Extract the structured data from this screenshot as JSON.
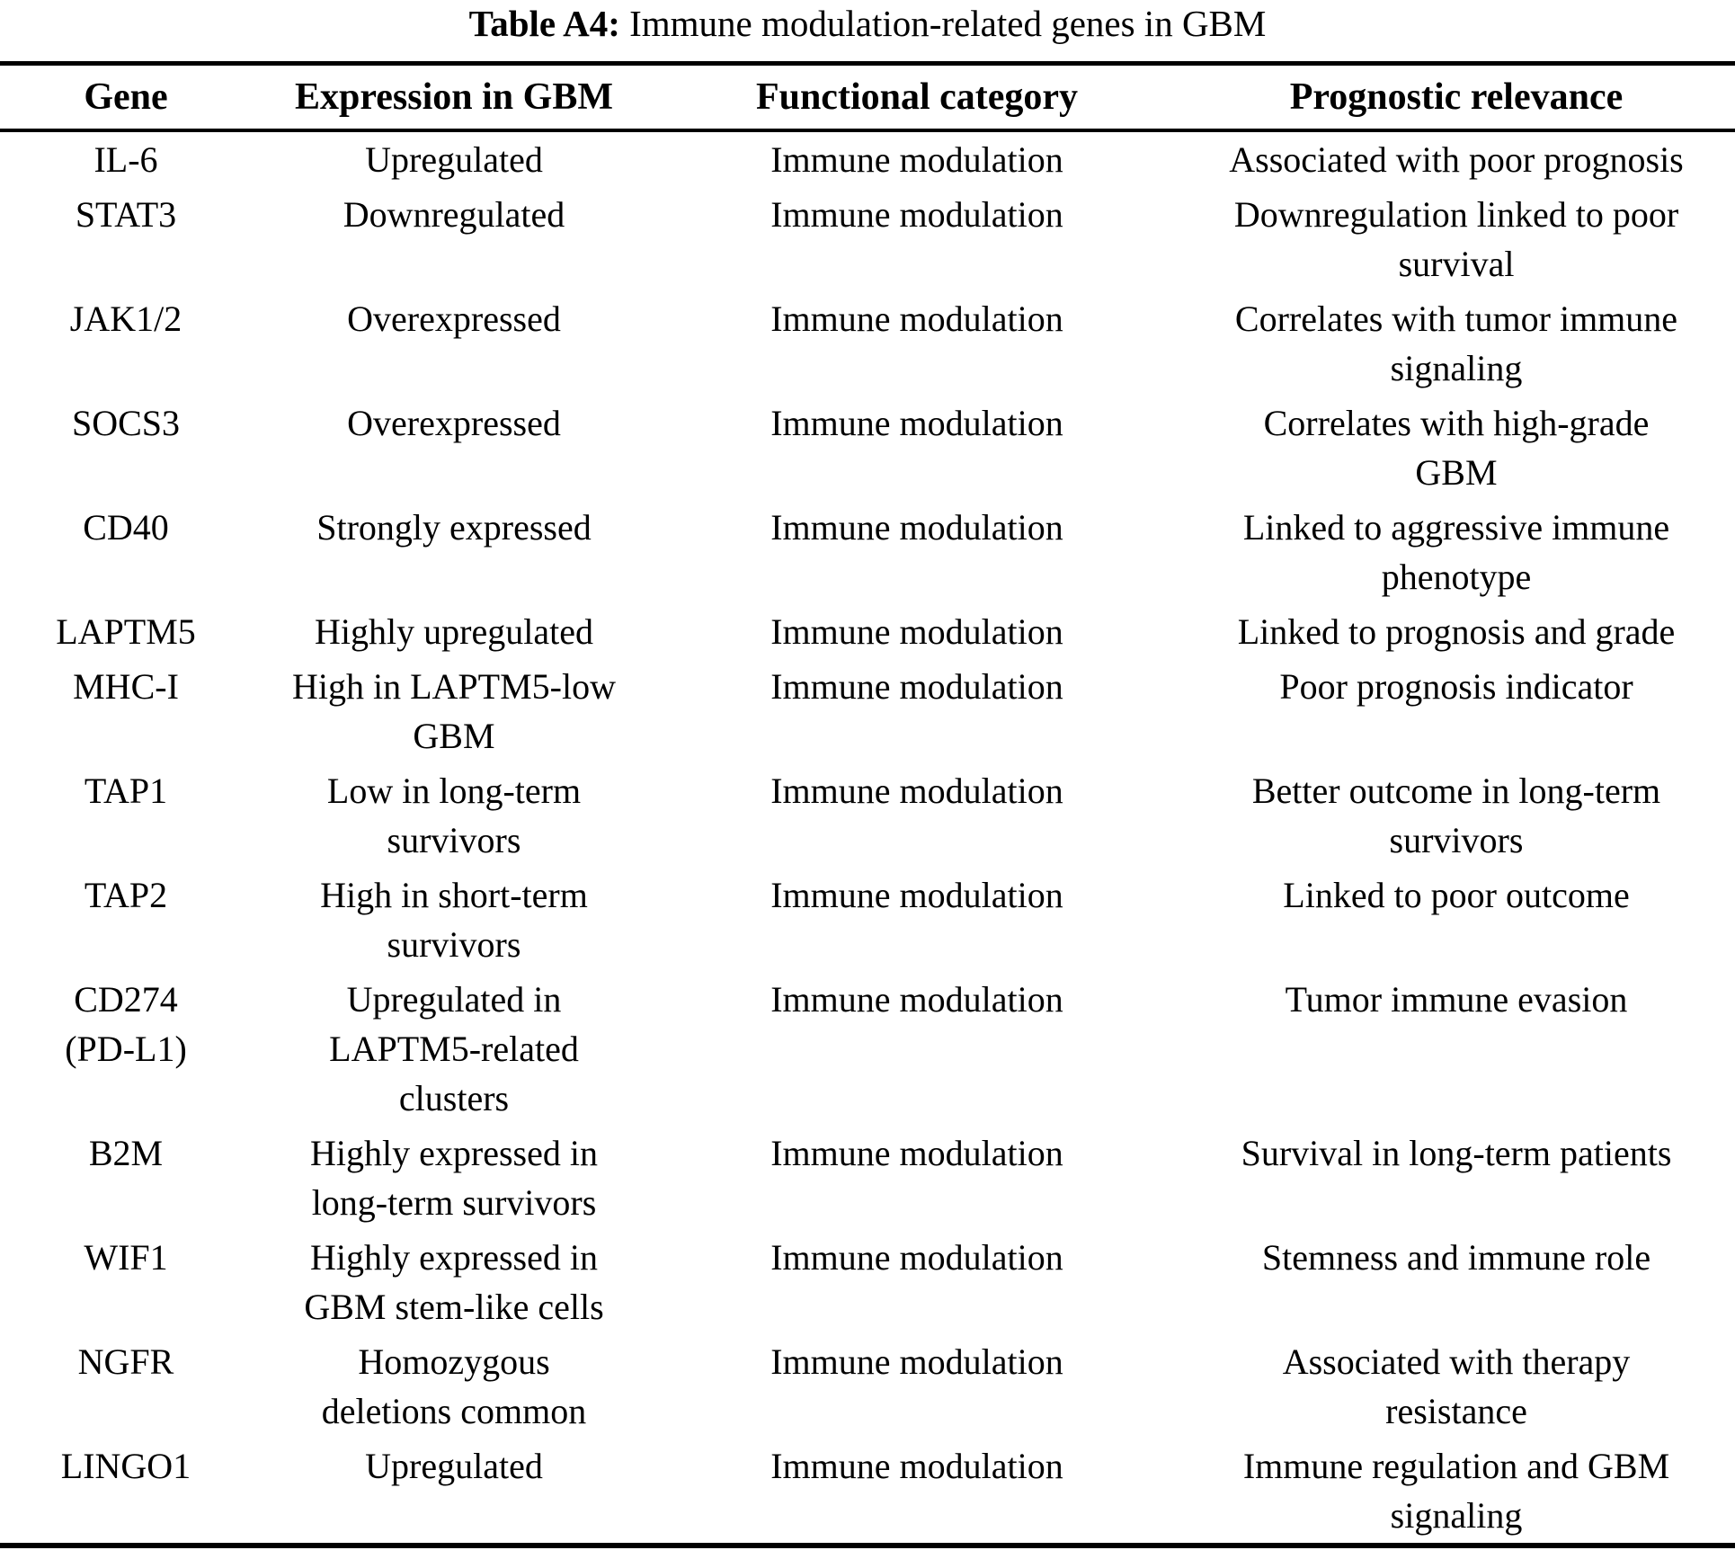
{
  "caption": {
    "prefix": "Table A4:",
    "text": " Immune modulation-related genes in GBM"
  },
  "colors": {
    "text": "#000000",
    "background": "#ffffff",
    "rule": "#000000"
  },
  "table": {
    "columns": [
      "Gene",
      "Expression in GBM",
      "Functional category",
      "Prognostic relevance"
    ],
    "rows": [
      {
        "gene": "IL-6",
        "expression": "Upregulated",
        "category": "Immune modulation",
        "prognosis": "Associated with poor prognosis"
      },
      {
        "gene": "STAT3",
        "expression": "Downregulated",
        "category": "Immune modulation",
        "prognosis": "Downregulation linked to poor\nsurvival"
      },
      {
        "gene": "JAK1/2",
        "expression": "Overexpressed",
        "category": "Immune modulation",
        "prognosis": "Correlates with tumor immune\nsignaling"
      },
      {
        "gene": "SOCS3",
        "expression": "Overexpressed",
        "category": "Immune modulation",
        "prognosis": "Correlates with high-grade\nGBM"
      },
      {
        "gene": "CD40",
        "expression": "Strongly expressed",
        "category": "Immune modulation",
        "prognosis": "Linked to aggressive immune\nphenotype"
      },
      {
        "gene": "LAPTM5",
        "expression": "Highly upregulated",
        "category": "Immune modulation",
        "prognosis": "Linked to prognosis and grade"
      },
      {
        "gene": "MHC-I",
        "expression": "High in LAPTM5-low\nGBM",
        "category": "Immune modulation",
        "prognosis": "Poor prognosis indicator"
      },
      {
        "gene": "TAP1",
        "expression": "Low in long-term\nsurvivors",
        "category": "Immune modulation",
        "prognosis": "Better outcome in long-term\nsurvivors"
      },
      {
        "gene": "TAP2",
        "expression": "High in short-term\nsurvivors",
        "category": "Immune modulation",
        "prognosis": "Linked to poor outcome"
      },
      {
        "gene": "CD274\n(PD-L1)",
        "expression": "Upregulated in\nLAPTM5-related\nclusters",
        "category": "Immune modulation",
        "prognosis": "Tumor immune evasion"
      },
      {
        "gene": "B2M",
        "expression": "Highly expressed in\nlong-term survivors",
        "category": "Immune modulation",
        "prognosis": "Survival in long-term patients"
      },
      {
        "gene": "WIF1",
        "expression": "Highly expressed in\nGBM stem-like cells",
        "category": "Immune modulation",
        "prognosis": "Stemness and immune role"
      },
      {
        "gene": "NGFR",
        "expression": "Homozygous\ndeletions common",
        "category": "Immune modulation",
        "prognosis": "Associated with therapy\nresistance"
      },
      {
        "gene": "LINGO1",
        "expression": "Upregulated",
        "category": "Immune modulation",
        "prognosis": "Immune regulation and GBM\nsignaling"
      }
    ]
  }
}
